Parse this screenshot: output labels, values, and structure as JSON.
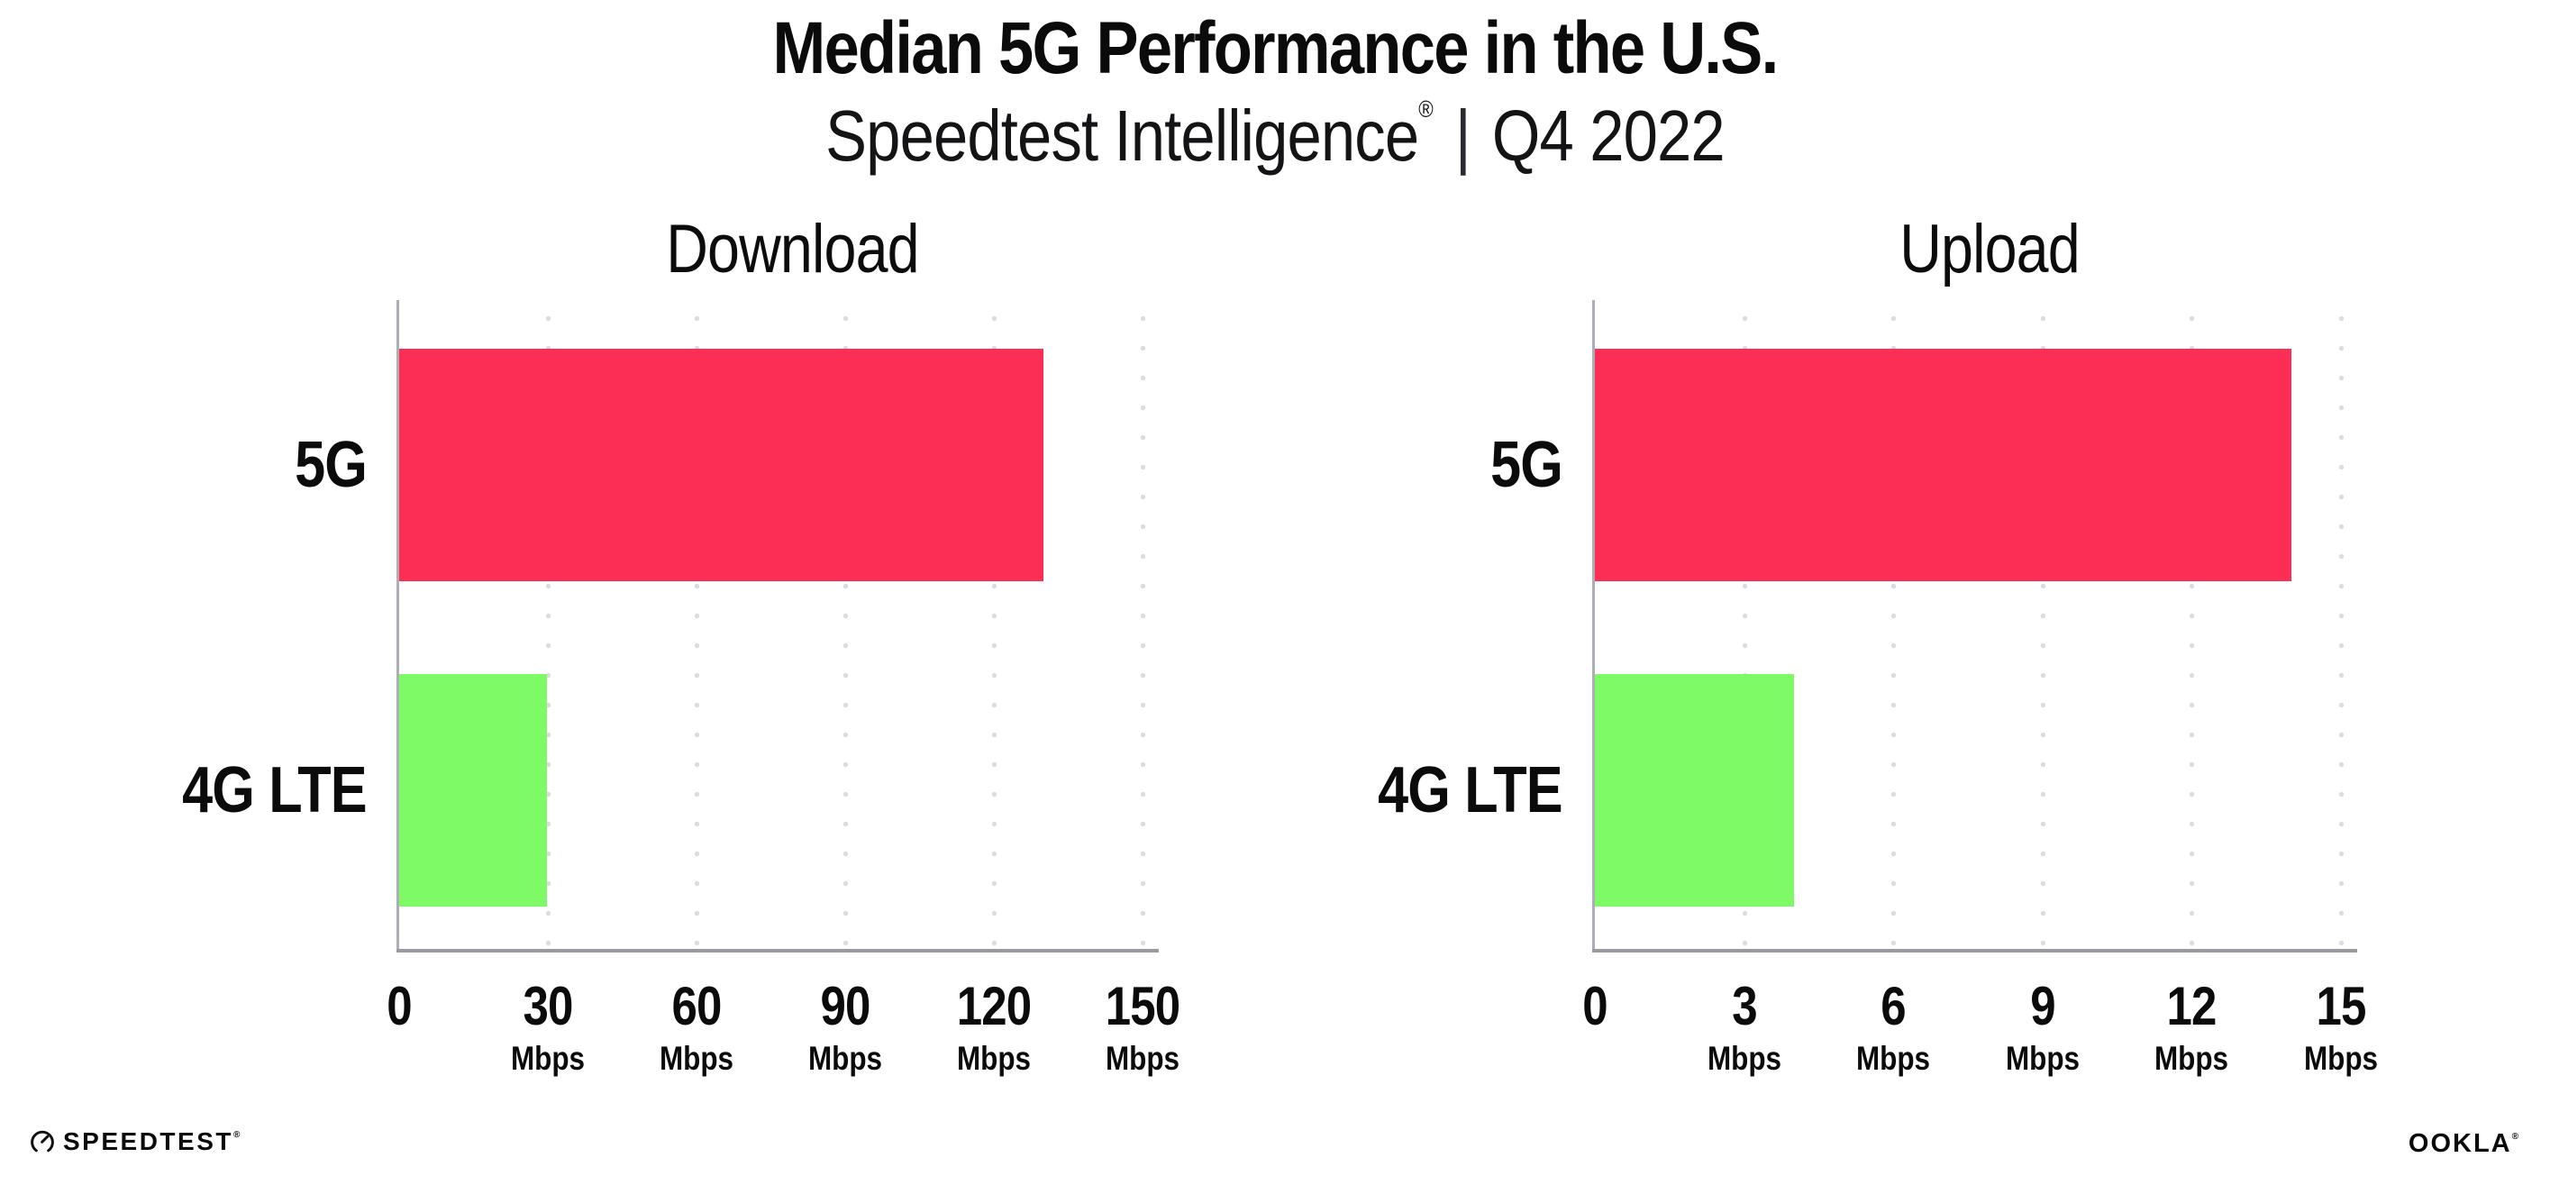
{
  "header": {
    "title": "Median 5G Performance in the U.S.",
    "subtitle_brand": "Speedtest Intelligence",
    "subtitle_reg": "®",
    "subtitle_sep": "|",
    "subtitle_period": "Q4 2022"
  },
  "chart_data": [
    {
      "type": "bar",
      "orientation": "horizontal",
      "title": "Download",
      "categories": [
        "5G",
        "4G LTE"
      ],
      "values": [
        130,
        29.8
      ],
      "unit": "Mbps",
      "xlim": [
        0,
        150
      ],
      "xticks": [
        0,
        30,
        60,
        90,
        120,
        150
      ],
      "colors": [
        "#FD2E55",
        "#7FFA67"
      ],
      "grid": "dotted-vertical",
      "legend": "none"
    },
    {
      "type": "bar",
      "orientation": "horizontal",
      "title": "Upload",
      "categories": [
        "5G",
        "4G LTE"
      ],
      "values": [
        14,
        4
      ],
      "unit": "Mbps",
      "xlim": [
        0,
        15
      ],
      "xticks": [
        0,
        3,
        6,
        9,
        12,
        15
      ],
      "colors": [
        "#FD2E55",
        "#7FFA67"
      ],
      "grid": "dotted-vertical",
      "legend": "none"
    }
  ],
  "footer": {
    "speedtest_label": "SPEEDTEST",
    "speedtest_reg": "®",
    "ookla_label": "OOKLA",
    "ookla_reg": "®"
  },
  "colors": {
    "bar_5g": "#FD2E55",
    "bar_4g_lte": "#7FFA67",
    "axis_line": "#9b99a1",
    "grid_dot": "#dcdae4",
    "text": "#0b0b0c"
  }
}
